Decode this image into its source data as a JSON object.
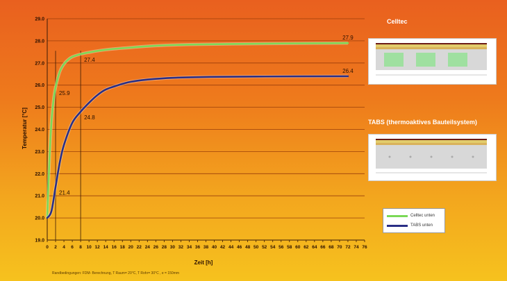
{
  "colors": {
    "grid": "#9a3e0a",
    "axis": "#3a1a05",
    "series_celltec": "#7bd957",
    "series_tabs": "#2a2f86",
    "marker_line": "#3a1a05"
  },
  "chart_data": {
    "type": "line",
    "xlabel": "Zeit [h]",
    "ylabel": "Temperatur [°C]",
    "xlim": [
      0,
      76
    ],
    "ylim": [
      19.0,
      29.0
    ],
    "x_ticks": [
      0,
      2,
      4,
      6,
      8,
      10,
      12,
      14,
      16,
      18,
      20,
      22,
      24,
      26,
      28,
      30,
      32,
      34,
      36,
      38,
      40,
      42,
      44,
      46,
      48,
      50,
      52,
      54,
      56,
      58,
      60,
      62,
      64,
      66,
      68,
      70,
      72,
      74,
      76
    ],
    "y_ticks": [
      "19.0",
      "20.0",
      "21.0",
      "22.0",
      "23.0",
      "24.0",
      "25.0",
      "26.0",
      "27.0",
      "28.0",
      "29.0"
    ],
    "grid": "horizontal",
    "legend_placement": "bottom-right",
    "markers_x": [
      2,
      8
    ],
    "series": [
      {
        "name": "Celltec unten",
        "color_key": "series_celltec",
        "points": [
          [
            0,
            20.0
          ],
          [
            0.5,
            22.5
          ],
          [
            1,
            24.3
          ],
          [
            1.5,
            25.3
          ],
          [
            2,
            25.9
          ],
          [
            3,
            26.6
          ],
          [
            4,
            26.95
          ],
          [
            5,
            27.15
          ],
          [
            6,
            27.28
          ],
          [
            8,
            27.4
          ],
          [
            10,
            27.48
          ],
          [
            14,
            27.6
          ],
          [
            20,
            27.7
          ],
          [
            26,
            27.78
          ],
          [
            34,
            27.83
          ],
          [
            44,
            27.86
          ],
          [
            56,
            27.88
          ],
          [
            72,
            27.9
          ]
        ]
      },
      {
        "name": "TABS unten",
        "color_key": "series_tabs",
        "points": [
          [
            0,
            20.0
          ],
          [
            1,
            20.3
          ],
          [
            2,
            21.4
          ],
          [
            3,
            22.5
          ],
          [
            4,
            23.3
          ],
          [
            6,
            24.3
          ],
          [
            8,
            24.8
          ],
          [
            10,
            25.2
          ],
          [
            12,
            25.55
          ],
          [
            14,
            25.8
          ],
          [
            17,
            26.0
          ],
          [
            20,
            26.15
          ],
          [
            24,
            26.25
          ],
          [
            30,
            26.33
          ],
          [
            38,
            26.37
          ],
          [
            50,
            26.39
          ],
          [
            72,
            26.4
          ]
        ]
      }
    ],
    "data_labels": [
      {
        "x": 72,
        "y": 27.9,
        "text": "27.9"
      },
      {
        "x": 8,
        "y": 27.4,
        "text": "27.4"
      },
      {
        "x": 2,
        "y": 25.9,
        "text": "25.9"
      },
      {
        "x": 72,
        "y": 26.4,
        "text": "26.4"
      },
      {
        "x": 8,
        "y": 24.8,
        "text": "24.8"
      },
      {
        "x": 2,
        "y": 21.4,
        "text": "21.4"
      }
    ]
  },
  "panels": {
    "celltec_title": "Celltec",
    "tabs_title": "TABS (thermoaktives Bauteilsystem)"
  },
  "legend": {
    "celltec": "Celltec unten",
    "tabs": "TABS unten"
  },
  "footnote": "Randbedingungen: FDM- Berechnung, T Raum= 20°C, T Rohr= 30°C , e = 150mm"
}
